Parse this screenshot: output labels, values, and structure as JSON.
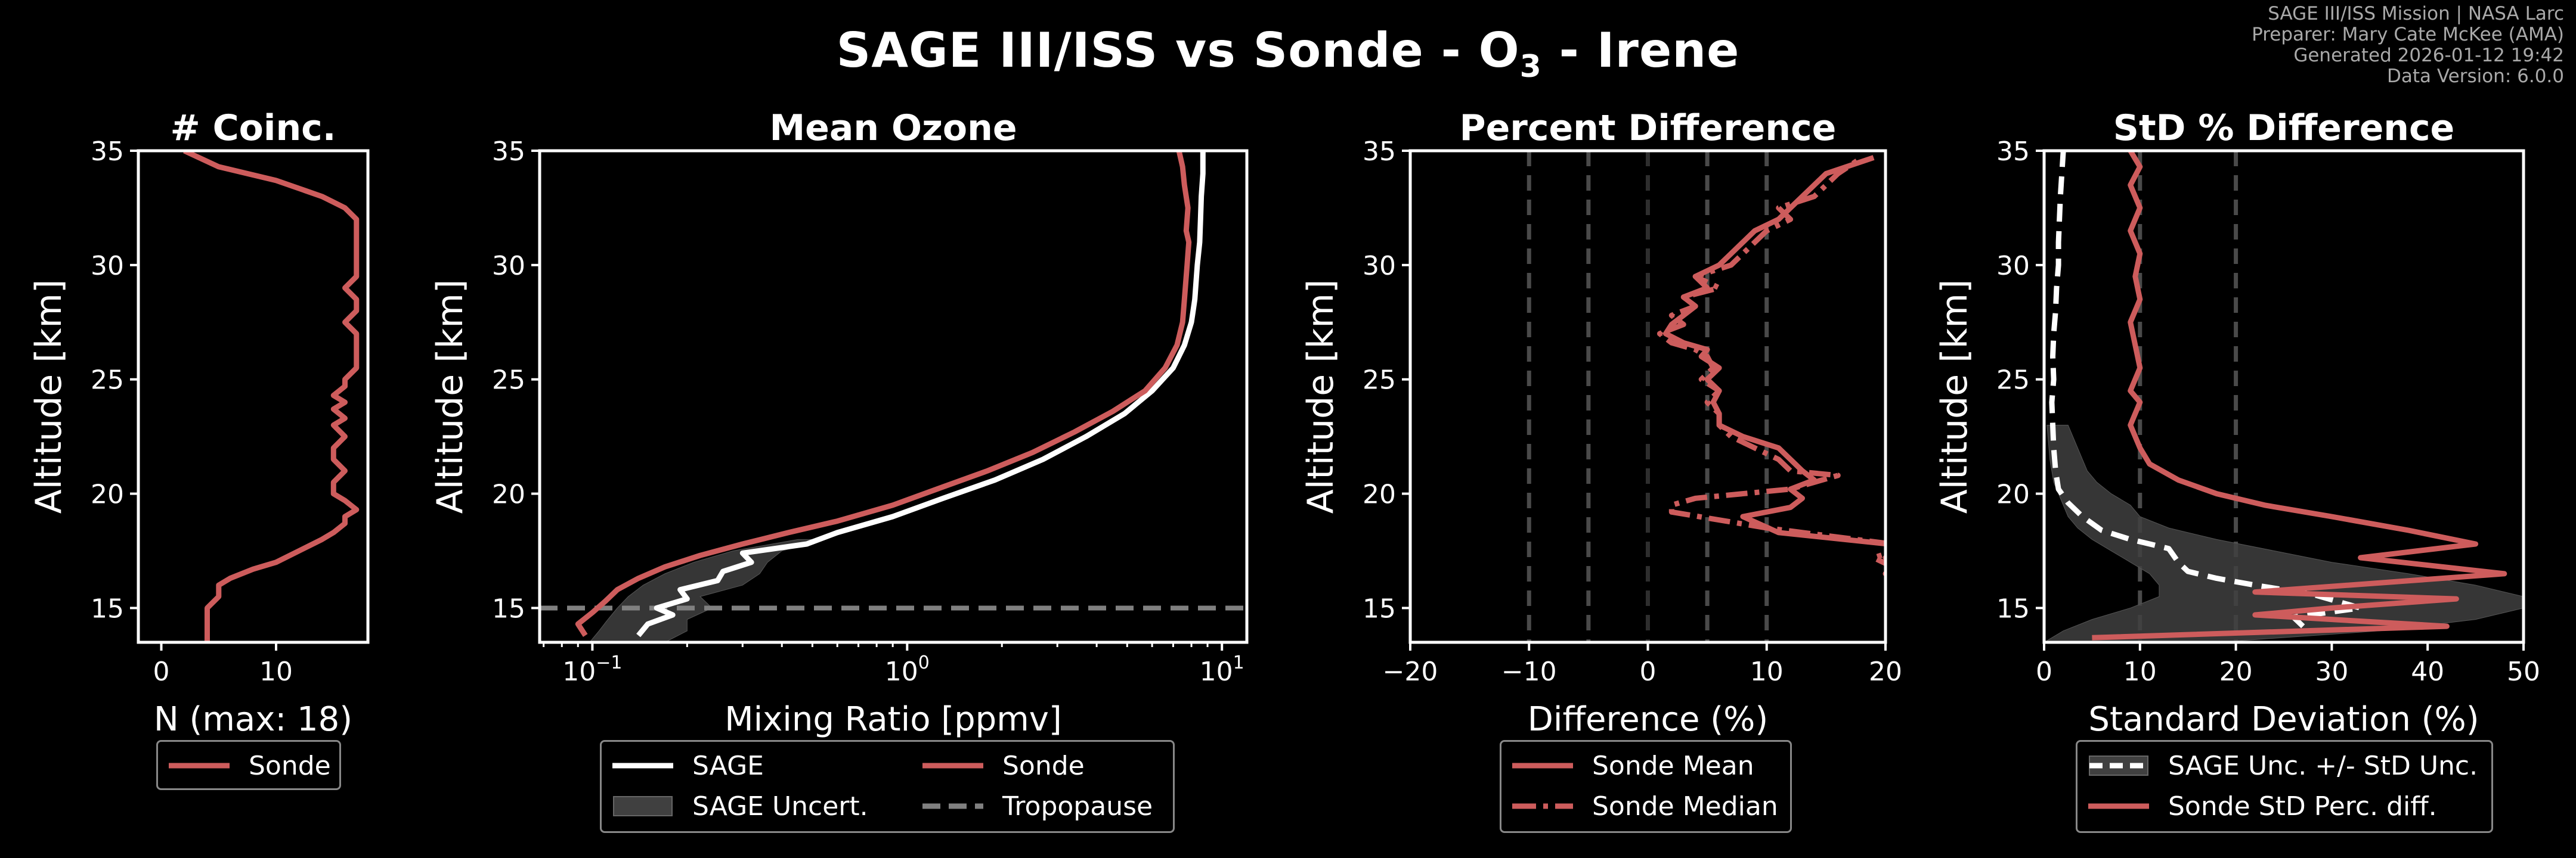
{
  "header": {
    "title_prefix": "SAGE III/ISS vs Sonde - O",
    "title_sub": "3",
    "title_suffix": " - Irene",
    "info": [
      "SAGE III/ISS Mission | NASA Larc",
      "Preparer: Mary Cate McKee (AMA)",
      "Generated 2026-01-12 19:42",
      "Data Version: 6.0.0"
    ]
  },
  "colors": {
    "sonde": "#cd5c5c",
    "sage": "#ffffff",
    "tropopause": "#808080",
    "uncert": "#404040",
    "grid": "#3a3a3a"
  },
  "chart_data": [
    {
      "id": "coinc",
      "type": "line",
      "title": "# Coinc.",
      "xlabel": "N (max: 18)",
      "ylabel": "Altitude [km]",
      "xscale": "linear",
      "xlim": [
        -2,
        18
      ],
      "ylim": [
        13.5,
        35
      ],
      "xticks": [
        0,
        10
      ],
      "xtick_labels": [
        "0",
        "10"
      ],
      "yticks": [
        15,
        20,
        25,
        30,
        35
      ],
      "ytick_labels": [
        "15",
        "20",
        "25",
        "30",
        "35"
      ],
      "legend": {
        "position": "below",
        "entries": [
          {
            "label": "Sonde",
            "style": "line",
            "color": "sonde"
          }
        ]
      },
      "series": [
        {
          "name": "Sonde",
          "color": "sonde",
          "dash": "",
          "width": 9,
          "x": [
            4,
            4,
            4,
            4,
            5,
            5,
            6,
            8,
            10,
            12,
            14,
            15,
            16,
            16,
            17,
            16,
            15,
            15,
            16,
            15,
            15,
            16,
            15,
            16,
            15,
            16,
            15,
            16,
            16,
            17,
            17,
            17,
            17,
            16,
            17,
            17,
            16,
            17,
            17,
            17,
            17,
            16,
            14,
            10,
            5,
            2
          ],
          "y": [
            13.5,
            14.0,
            14.5,
            15.0,
            15.5,
            16.0,
            16.3,
            16.7,
            17.0,
            17.5,
            18.0,
            18.3,
            18.7,
            19.0,
            19.3,
            19.7,
            20.0,
            20.5,
            21.0,
            21.5,
            22.0,
            22.5,
            23.0,
            23.3,
            23.7,
            24.0,
            24.3,
            24.7,
            25.0,
            25.5,
            26.0,
            26.5,
            27.0,
            27.5,
            28.0,
            28.5,
            29.0,
            29.5,
            30.0,
            31.0,
            32.0,
            32.5,
            33.0,
            33.7,
            34.3,
            35.0
          ]
        }
      ]
    },
    {
      "id": "mean",
      "type": "line",
      "title": "Mean Ozone",
      "xlabel": "Mixing Ratio [ppmv]",
      "ylabel": "Altitude [km]",
      "xscale": "log",
      "xlim": [
        0.068,
        12
      ],
      "ylim": [
        13.5,
        35
      ],
      "xticks": [
        0.1,
        1,
        10
      ],
      "xtick_labels": [
        "10",
        "10",
        "10"
      ],
      "xtick_exps": [
        "−1",
        "0",
        "1"
      ],
      "yticks": [
        15,
        20,
        25,
        30,
        35
      ],
      "ytick_labels": [
        "15",
        "20",
        "25",
        "30",
        "35"
      ],
      "tropopause_altitude": 15.0,
      "uncertainty_band": {
        "color": "uncert",
        "y": [
          13.5,
          14.0,
          14.5,
          15.0,
          15.5,
          16.0,
          16.5,
          17.0,
          17.5,
          18.0
        ],
        "lo": [
          0.098,
          0.105,
          0.112,
          0.12,
          0.13,
          0.145,
          0.17,
          0.21,
          0.28,
          0.45
        ],
        "hi": [
          0.17,
          0.2,
          0.2,
          0.24,
          0.22,
          0.3,
          0.34,
          0.36,
          0.4,
          0.55
        ]
      },
      "legend": {
        "position": "below",
        "entries": [
          {
            "label": "SAGE",
            "style": "line",
            "color": "sage"
          },
          {
            "label": "Sonde",
            "style": "line",
            "color": "sonde"
          },
          {
            "label": "SAGE Uncert.",
            "style": "patch",
            "color": "uncert"
          },
          {
            "label": "Tropopause",
            "style": "dash",
            "color": "tropopause"
          }
        ]
      },
      "series": [
        {
          "name": "SAGE",
          "color": "sage",
          "dash": "",
          "width": 9,
          "x": [
            0.14,
            0.15,
            0.18,
            0.16,
            0.2,
            0.19,
            0.25,
            0.26,
            0.32,
            0.3,
            0.48,
            0.6,
            0.9,
            1.3,
            1.9,
            2.7,
            3.7,
            4.9,
            6.0,
            7.0,
            7.6,
            8.0,
            8.1,
            8.2,
            8.25,
            8.3,
            8.35,
            8.5,
            8.55,
            8.6,
            8.7,
            8.7
          ],
          "y": [
            13.8,
            14.3,
            14.7,
            15.0,
            15.4,
            15.8,
            16.2,
            16.6,
            17.0,
            17.4,
            17.8,
            18.3,
            19.0,
            19.8,
            20.6,
            21.5,
            22.5,
            23.5,
            24.5,
            25.5,
            26.5,
            27.5,
            28.0,
            28.5,
            29.0,
            29.5,
            30.0,
            31.0,
            32.0,
            33.0,
            34.0,
            35.0
          ]
        },
        {
          "name": "Sonde",
          "color": "sonde",
          "dash": "",
          "width": 9,
          "x": [
            0.095,
            0.09,
            0.1,
            0.11,
            0.12,
            0.14,
            0.17,
            0.22,
            0.3,
            0.42,
            0.6,
            0.9,
            1.3,
            1.8,
            2.5,
            3.4,
            4.5,
            5.7,
            6.6,
            7.2,
            7.5,
            7.6,
            7.7,
            7.75,
            7.8,
            7.85,
            7.7,
            7.8,
            7.6,
            7.5,
            7.3
          ],
          "y": [
            13.8,
            14.3,
            14.8,
            15.3,
            15.8,
            16.3,
            16.8,
            17.3,
            17.8,
            18.3,
            18.8,
            19.5,
            20.3,
            21.0,
            21.8,
            22.7,
            23.6,
            24.5,
            25.5,
            26.5,
            27.5,
            28.5,
            29.5,
            30.0,
            30.5,
            31.0,
            31.5,
            32.5,
            33.5,
            34.3,
            35.0
          ]
        }
      ]
    },
    {
      "id": "pctdiff",
      "type": "line",
      "title": "Percent Difference",
      "xlabel": "Difference (%)",
      "ylabel": "Altitude [km]",
      "xscale": "linear",
      "xlim": [
        -20,
        20
      ],
      "ylim": [
        13.5,
        35
      ],
      "xticks": [
        -20,
        -10,
        0,
        10,
        20
      ],
      "xtick_labels": [
        "−20",
        "−10",
        "0",
        "10",
        "20"
      ],
      "yticks": [
        15,
        20,
        25,
        30,
        35
      ],
      "ytick_labels": [
        "15",
        "20",
        "25",
        "30",
        "35"
      ],
      "vlines": [
        {
          "x": -10,
          "color": "#4a4a4a"
        },
        {
          "x": -5,
          "color": "#4a4a4a"
        },
        {
          "x": 0,
          "color": "#2e2e2e"
        },
        {
          "x": 5,
          "color": "#4a4a4a"
        },
        {
          "x": 10,
          "color": "#4a4a4a"
        }
      ],
      "legend": {
        "position": "below",
        "entries": [
          {
            "label": "Sonde Mean",
            "style": "line",
            "color": "sonde"
          },
          {
            "label": "Sonde Median",
            "style": "dashdot",
            "color": "sonde"
          }
        ]
      },
      "series": [
        {
          "name": "Sonde Mean",
          "color": "sonde",
          "dash": "",
          "width": 9,
          "x": [
            22,
            21,
            20,
            22,
            20,
            22,
            11,
            8,
            12,
            13,
            12,
            14,
            13,
            12,
            11,
            8,
            6,
            6,
            5.5,
            6,
            5,
            6,
            4.5,
            5,
            3,
            1.5,
            2,
            3,
            4,
            3,
            5,
            4,
            6,
            7,
            8,
            9,
            11,
            12,
            13,
            14,
            15,
            19
          ],
          "y": [
            16.0,
            16.3,
            16.5,
            16.7,
            17.2,
            17.7,
            18.3,
            19.0,
            19.4,
            19.8,
            20.2,
            20.6,
            21.0,
            21.5,
            22.0,
            22.5,
            23.0,
            23.5,
            24.0,
            24.5,
            25.0,
            25.5,
            26.0,
            26.3,
            26.6,
            27.0,
            27.4,
            27.8,
            28.2,
            28.6,
            29.0,
            29.5,
            30.0,
            30.5,
            31.0,
            31.5,
            32.0,
            32.5,
            33.0,
            33.5,
            34.0,
            34.7
          ]
        },
        {
          "name": "Sonde Median",
          "color": "sonde",
          "dash": "36 12 8 12",
          "width": 9,
          "x": [
            22,
            21,
            20,
            21,
            19,
            22,
            10,
            2,
            2,
            4,
            12,
            16,
            12,
            11,
            9,
            7,
            6,
            6,
            5,
            6,
            4.5,
            5.5,
            5,
            4,
            2,
            1,
            3,
            2,
            4,
            3,
            6,
            4,
            7,
            8,
            9,
            10,
            12,
            11,
            14,
            15,
            16,
            18
          ],
          "y": [
            16.0,
            16.3,
            16.5,
            16.7,
            17.2,
            17.7,
            18.5,
            19.2,
            19.5,
            19.8,
            20.2,
            20.8,
            21.0,
            21.5,
            22.0,
            22.5,
            23.0,
            23.5,
            24.0,
            24.5,
            25.0,
            25.5,
            26.0,
            26.3,
            26.6,
            27.0,
            27.4,
            27.8,
            28.2,
            28.6,
            29.0,
            29.5,
            30.0,
            30.5,
            31.0,
            31.5,
            32.0,
            32.5,
            33.0,
            33.5,
            34.0,
            34.7
          ]
        }
      ]
    },
    {
      "id": "std",
      "type": "line",
      "title": "StD % Difference",
      "xlabel": "Standard Deviation (%)",
      "ylabel": "Altitude [km]",
      "xscale": "linear",
      "xlim": [
        0,
        50
      ],
      "ylim": [
        13.5,
        35
      ],
      "xticks": [
        0,
        10,
        20,
        30,
        40,
        50
      ],
      "xtick_labels": [
        "0",
        "10",
        "20",
        "30",
        "40",
        "50"
      ],
      "yticks": [
        15,
        20,
        25,
        30,
        35
      ],
      "ytick_labels": [
        "15",
        "20",
        "25",
        "30",
        "35"
      ],
      "vlines": [
        {
          "x": 10,
          "color": "#4a4a4a"
        },
        {
          "x": 20,
          "color": "#4a4a4a"
        }
      ],
      "uncertainty_band": {
        "color": "uncert",
        "y": [
          13.5,
          14.0,
          14.5,
          15.0,
          15.5,
          16.0,
          16.5,
          17.0,
          17.5,
          18.0,
          18.5,
          19.0,
          19.5,
          20.0,
          20.5,
          21.0,
          21.5,
          22.0,
          22.5,
          23.0
        ],
        "lo": [
          0,
          2,
          5,
          9,
          12,
          12,
          11,
          9,
          7,
          5,
          3.5,
          2.5,
          2,
          1.5,
          1,
          0.8,
          0.6,
          0.5,
          0.4,
          0.3
        ],
        "hi": [
          18,
          35,
          45,
          50,
          50,
          45,
          38,
          30,
          24,
          18,
          13,
          10,
          9,
          7,
          5.5,
          4.5,
          4,
          3.5,
          3,
          2.5
        ]
      },
      "legend": {
        "position": "below",
        "entries": [
          {
            "label": "SAGE Unc. +/- StD Unc.",
            "style": "dash-patch",
            "color": "sage"
          },
          {
            "label": "Sonde StD Perc. diff.",
            "style": "line",
            "color": "sonde"
          }
        ]
      },
      "series": [
        {
          "name": "SAGE Unc.",
          "color": "sage",
          "dash": "30 16",
          "width": 9,
          "x": [
            27,
            26,
            33,
            28,
            22,
            18,
            15,
            14,
            13,
            9,
            6,
            4,
            2.5,
            1.5,
            1.2,
            1.0,
            0.9,
            0.8,
            1.0,
            0.9,
            1.0,
            1.2,
            1.3,
            1.5,
            1.5,
            1.6,
            1.7,
            2.0
          ],
          "y": [
            14.2,
            14.6,
            15.0,
            15.6,
            16.0,
            16.3,
            16.6,
            17.0,
            17.6,
            18.0,
            18.4,
            19.0,
            19.6,
            20.2,
            21.0,
            22.0,
            23.0,
            24.0,
            25.0,
            26.0,
            27.0,
            28.0,
            29.0,
            30.0,
            31.0,
            32.0,
            33.0,
            35.0
          ]
        },
        {
          "name": "Sonde StD Perc. diff.",
          "color": "sonde",
          "dash": "",
          "width": 9,
          "x": [
            5,
            42,
            22,
            30,
            43,
            22,
            48,
            33,
            45,
            38,
            30,
            23,
            18,
            14,
            11,
            10,
            9,
            10,
            9,
            10,
            9.5,
            9,
            10,
            9.5,
            10,
            9,
            10,
            9,
            10,
            9
          ],
          "y": [
            13.7,
            14.2,
            14.7,
            15.0,
            15.4,
            15.7,
            16.5,
            17.2,
            17.8,
            18.4,
            19.0,
            19.5,
            20.0,
            20.6,
            21.3,
            22.0,
            23.0,
            24.0,
            24.5,
            25.5,
            26.5,
            27.5,
            28.5,
            29.5,
            30.5,
            31.5,
            32.5,
            33.5,
            34.3,
            35.0
          ]
        }
      ]
    }
  ]
}
